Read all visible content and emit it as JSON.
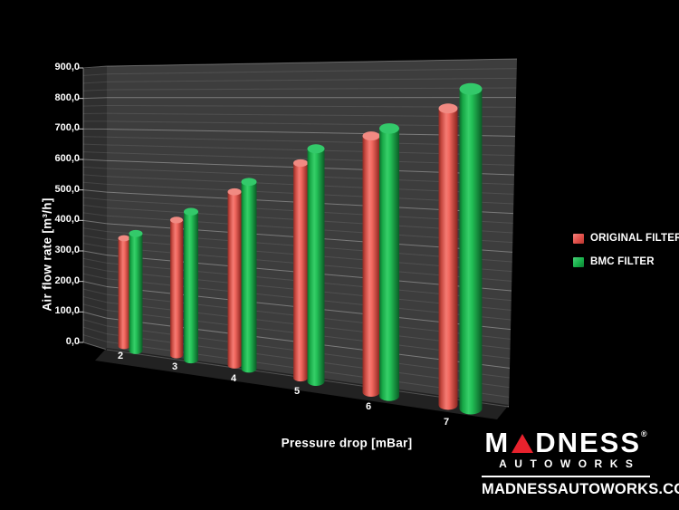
{
  "chart_data": {
    "type": "bar",
    "subtype": "3d-cylinder",
    "title": "",
    "xlabel": "Pressure drop [mBar]",
    "ylabel": "Air flow rate [m³/h]",
    "categories": [
      "2",
      "3",
      "4",
      "5",
      "6",
      "7"
    ],
    "series": [
      {
        "name": "ORIGINAL FILTER",
        "color": "#e8534e",
        "values": [
          350,
          420,
          510,
          600,
          690,
          770
        ]
      },
      {
        "name": "BMC FILTER",
        "color": "#1cb054",
        "values": [
          380,
          460,
          550,
          650,
          720,
          830
        ]
      }
    ],
    "ylim": [
      0,
      900
    ],
    "ytick_step": 100,
    "minor_grid_step": 25,
    "ytick_labels": [
      "0,0",
      "100,0",
      "200,0",
      "300,0",
      "400,0",
      "500,0",
      "600,0",
      "700,0",
      "800,0",
      "900,0"
    ],
    "grid": "on",
    "legend_position": "right",
    "background_color": "#000000",
    "wall_color": "#3d3d3d"
  },
  "legend": {
    "items": [
      {
        "label": "ORIGINAL FILTER",
        "color": "#e8534e"
      },
      {
        "label": "BMC FILTER",
        "color": "#1cb054"
      }
    ]
  },
  "branding": {
    "logo_text": "MADNESS",
    "logo_mark": "®",
    "logo_sub": "AUTOWORKS",
    "website": "MADNESSAUTOWORKS.COM",
    "accent": "#e8222d"
  }
}
